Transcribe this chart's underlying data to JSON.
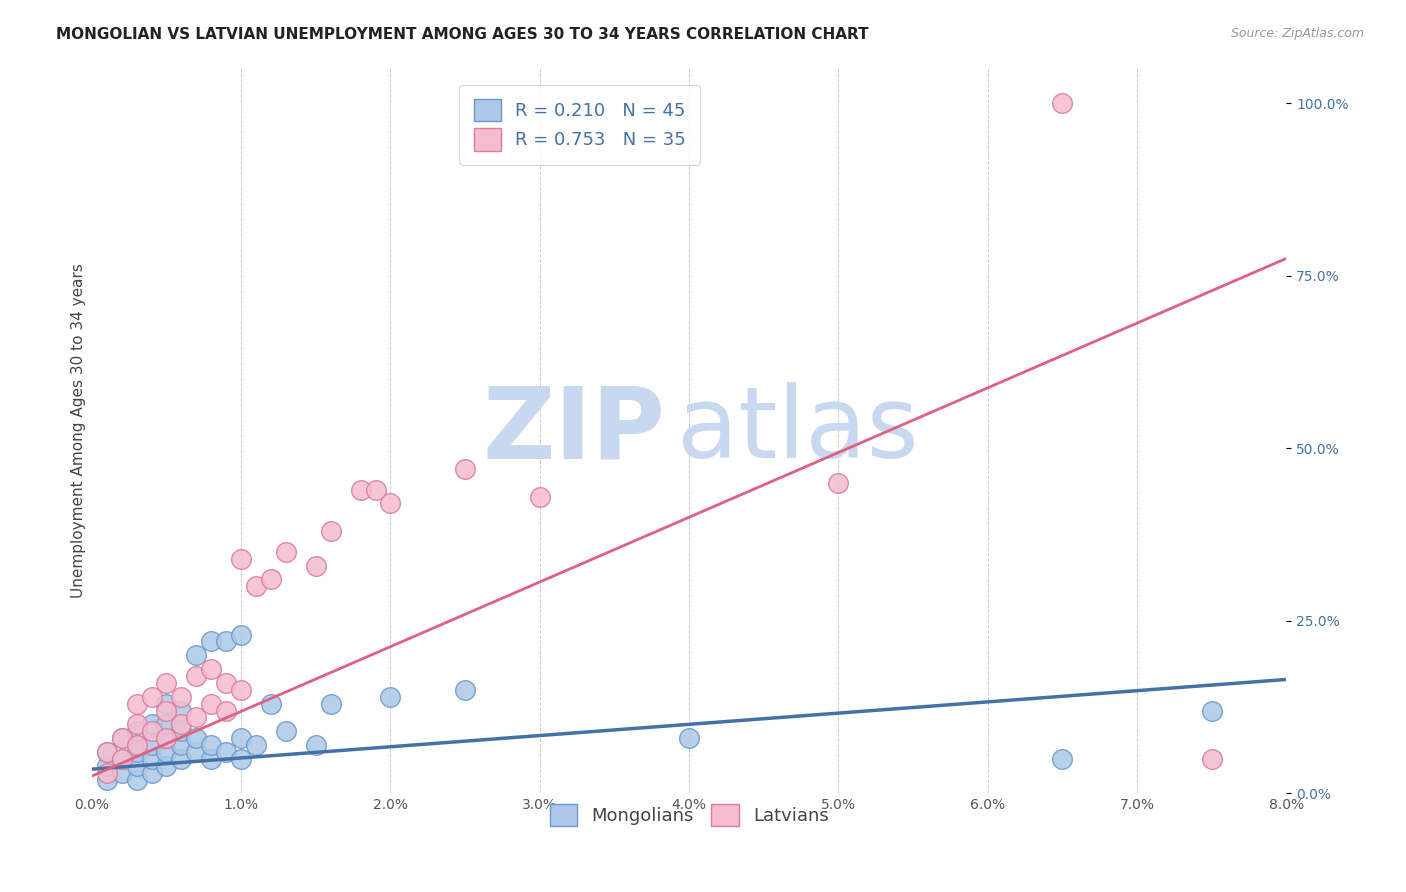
{
  "title": "MONGOLIAN VS LATVIAN UNEMPLOYMENT AMONG AGES 30 TO 34 YEARS CORRELATION CHART",
  "source": "Source: ZipAtlas.com",
  "ylabel": "Unemployment Among Ages 30 to 34 years",
  "xlim": [
    0.0,
    0.08
  ],
  "ylim": [
    0.0,
    1.05
  ],
  "xticks": [
    0.0,
    0.01,
    0.02,
    0.03,
    0.04,
    0.05,
    0.06,
    0.07,
    0.08
  ],
  "yticks_right": [
    0.0,
    0.25,
    0.5,
    0.75,
    1.0
  ],
  "mongolian_color": "#adc8e8",
  "mongolian_edge": "#6699cc",
  "latvian_color": "#f5bcd0",
  "latvian_edge": "#e07898",
  "trend_mongolian_color": "#4472a8",
  "trend_latvian_color": "#e06080",
  "background_color": "#ffffff",
  "grid_color": "#cccccc",
  "mongolian_x": [
    0.001,
    0.001,
    0.001,
    0.002,
    0.002,
    0.002,
    0.003,
    0.003,
    0.003,
    0.003,
    0.003,
    0.004,
    0.004,
    0.004,
    0.004,
    0.005,
    0.005,
    0.005,
    0.005,
    0.005,
    0.006,
    0.006,
    0.006,
    0.006,
    0.007,
    0.007,
    0.007,
    0.008,
    0.008,
    0.008,
    0.009,
    0.009,
    0.01,
    0.01,
    0.01,
    0.011,
    0.012,
    0.013,
    0.015,
    0.016,
    0.02,
    0.025,
    0.04,
    0.065,
    0.075
  ],
  "mongolian_y": [
    0.02,
    0.04,
    0.06,
    0.03,
    0.05,
    0.08,
    0.02,
    0.04,
    0.06,
    0.07,
    0.09,
    0.03,
    0.05,
    0.07,
    0.1,
    0.04,
    0.06,
    0.08,
    0.1,
    0.13,
    0.05,
    0.07,
    0.09,
    0.12,
    0.06,
    0.08,
    0.2,
    0.05,
    0.07,
    0.22,
    0.06,
    0.22,
    0.05,
    0.08,
    0.23,
    0.07,
    0.13,
    0.09,
    0.07,
    0.13,
    0.14,
    0.15,
    0.08,
    0.05,
    0.12
  ],
  "latvian_x": [
    0.001,
    0.001,
    0.002,
    0.002,
    0.003,
    0.003,
    0.003,
    0.004,
    0.004,
    0.005,
    0.005,
    0.005,
    0.006,
    0.006,
    0.007,
    0.007,
    0.008,
    0.008,
    0.009,
    0.009,
    0.01,
    0.01,
    0.011,
    0.012,
    0.013,
    0.015,
    0.016,
    0.018,
    0.019,
    0.02,
    0.025,
    0.03,
    0.05,
    0.065,
    0.075
  ],
  "latvian_y": [
    0.03,
    0.06,
    0.05,
    0.08,
    0.07,
    0.1,
    0.13,
    0.09,
    0.14,
    0.08,
    0.12,
    0.16,
    0.1,
    0.14,
    0.11,
    0.17,
    0.13,
    0.18,
    0.12,
    0.16,
    0.15,
    0.34,
    0.3,
    0.31,
    0.35,
    0.33,
    0.38,
    0.44,
    0.44,
    0.42,
    0.47,
    0.43,
    0.45,
    1.0,
    0.05
  ],
  "trend_mongolian_intercept": 0.035,
  "trend_mongolian_slope": 1.625,
  "trend_latvian_intercept": 0.025,
  "trend_latvian_slope": 9.375,
  "watermark_zip": "ZIP",
  "watermark_atlas": "atlas",
  "watermark_color_zip": "#c8d8f0",
  "watermark_color_atlas": "#c8d8f0",
  "legend_R_mongolian": "R = 0.210",
  "legend_N_mongolian": "N = 45",
  "legend_R_latvian": "R = 0.753",
  "legend_N_latvian": "N = 35",
  "title_fontsize": 11,
  "axis_label_fontsize": 11,
  "tick_fontsize": 10,
  "legend_fontsize": 13,
  "right_tick_color": "#4472a8"
}
